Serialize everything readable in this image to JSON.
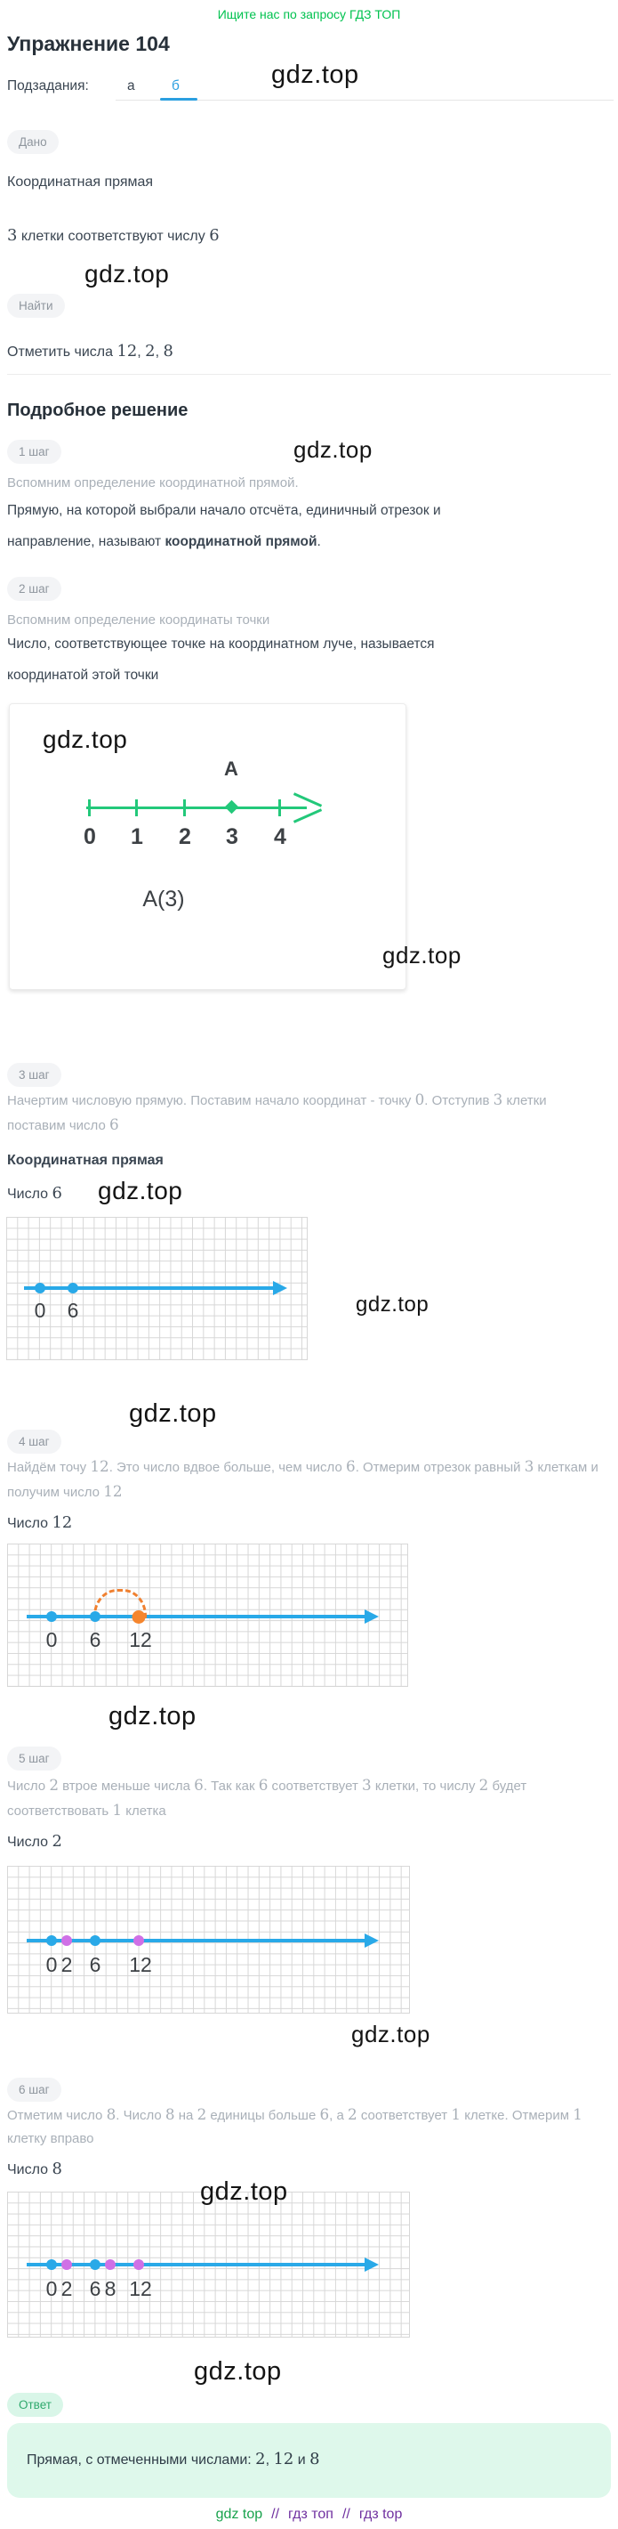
{
  "promo": "Ищите нас по запросу ГДЗ ТОП",
  "watermark_text": "gdz.top",
  "header": {
    "title": "Упражнение 104",
    "subtasks_label": "Подзадания:",
    "tabs": [
      {
        "label": "а",
        "active": false
      },
      {
        "label": "б",
        "active": true
      }
    ]
  },
  "given": {
    "badge": "Дано",
    "line1": "Координатная прямая",
    "line2": "3 клетки соответствуют числу 6"
  },
  "find": {
    "badge": "Найти",
    "line": "Отметить числа 12, 2, 8"
  },
  "solution_title": "Подробное решение",
  "steps": {
    "s1": {
      "badge": "1 шаг",
      "note": "Вспомним определение координатной прямой.",
      "text_normal": "Прямую, на которой выбрали начало отсчёта, единичный отрезок и направление, называют ",
      "text_bold": "координатной прямой",
      "text_end": "."
    },
    "s2": {
      "badge": "2 шаг",
      "note": "Вспомним определение координаты точки",
      "text": "Число, соответствующее точке на координатном луче, называется координатой этой точки"
    },
    "s3": {
      "badge": "3 шаг",
      "note": "Начертим числовую прямую. Поставим начало координат - точку 0. Отступив 3 клетки поставим число 6",
      "subtitle": "Координатная прямая",
      "figure_label": "Число 6"
    },
    "s4": {
      "badge": "4 шаг",
      "note": "Найдём точу 12. Это число вдвое больше, чем число 6. Отмерим отрезок равный 3 клеткам и получим число 12",
      "figure_label": "Число 12"
    },
    "s5": {
      "badge": "5 шаг",
      "note": "Число 2 втрое меньше числа 6. Так как 6 соответствует 3 клетки, то числу 2 будет соответствовать 1 клетка",
      "figure_label": "Число 2"
    },
    "s6": {
      "badge": "6 шаг",
      "note": "Отметим число 8. Число 8 на 2 единицы больше 6, а 2 соответствует 1 клетке. Отмерим 1 клетку вправо",
      "figure_label": "Число 8"
    }
  },
  "ray_figure": {
    "point_name": "A",
    "ticks": [
      "0",
      "1",
      "2",
      "3",
      "4"
    ],
    "marked_tick": "3",
    "caption": "A(3)",
    "line_color": "#23c87a"
  },
  "grids": {
    "g6": {
      "labels": {
        "n0": "0",
        "n6": "6"
      }
    },
    "g12": {
      "labels": {
        "n0": "0",
        "n6": "6",
        "n12": "12"
      }
    },
    "g2": {
      "labels": {
        "n0": "0",
        "n2": "2",
        "n6": "6",
        "n12": "12"
      }
    },
    "g8": {
      "labels": {
        "n0": "0",
        "n2": "2",
        "n6": "6",
        "n8": "8",
        "n12": "12"
      }
    }
  },
  "answer": {
    "badge": "Ответ",
    "text": "Прямая, с отмеченными числами: 2, 12 и 8"
  },
  "footer": {
    "link1": "gdz top",
    "sep1": "//",
    "link2": "гдз топ",
    "sep2": "//",
    "link3": "гдз top"
  },
  "colors": {
    "accent_blue": "#29a9e8",
    "figure_green": "#23c87a",
    "orange": "#f5862e",
    "violet": "#cf70e6",
    "promo_green": "#00c24f",
    "footer_green": "#18a24c",
    "footer_purple": "#7031a0"
  }
}
